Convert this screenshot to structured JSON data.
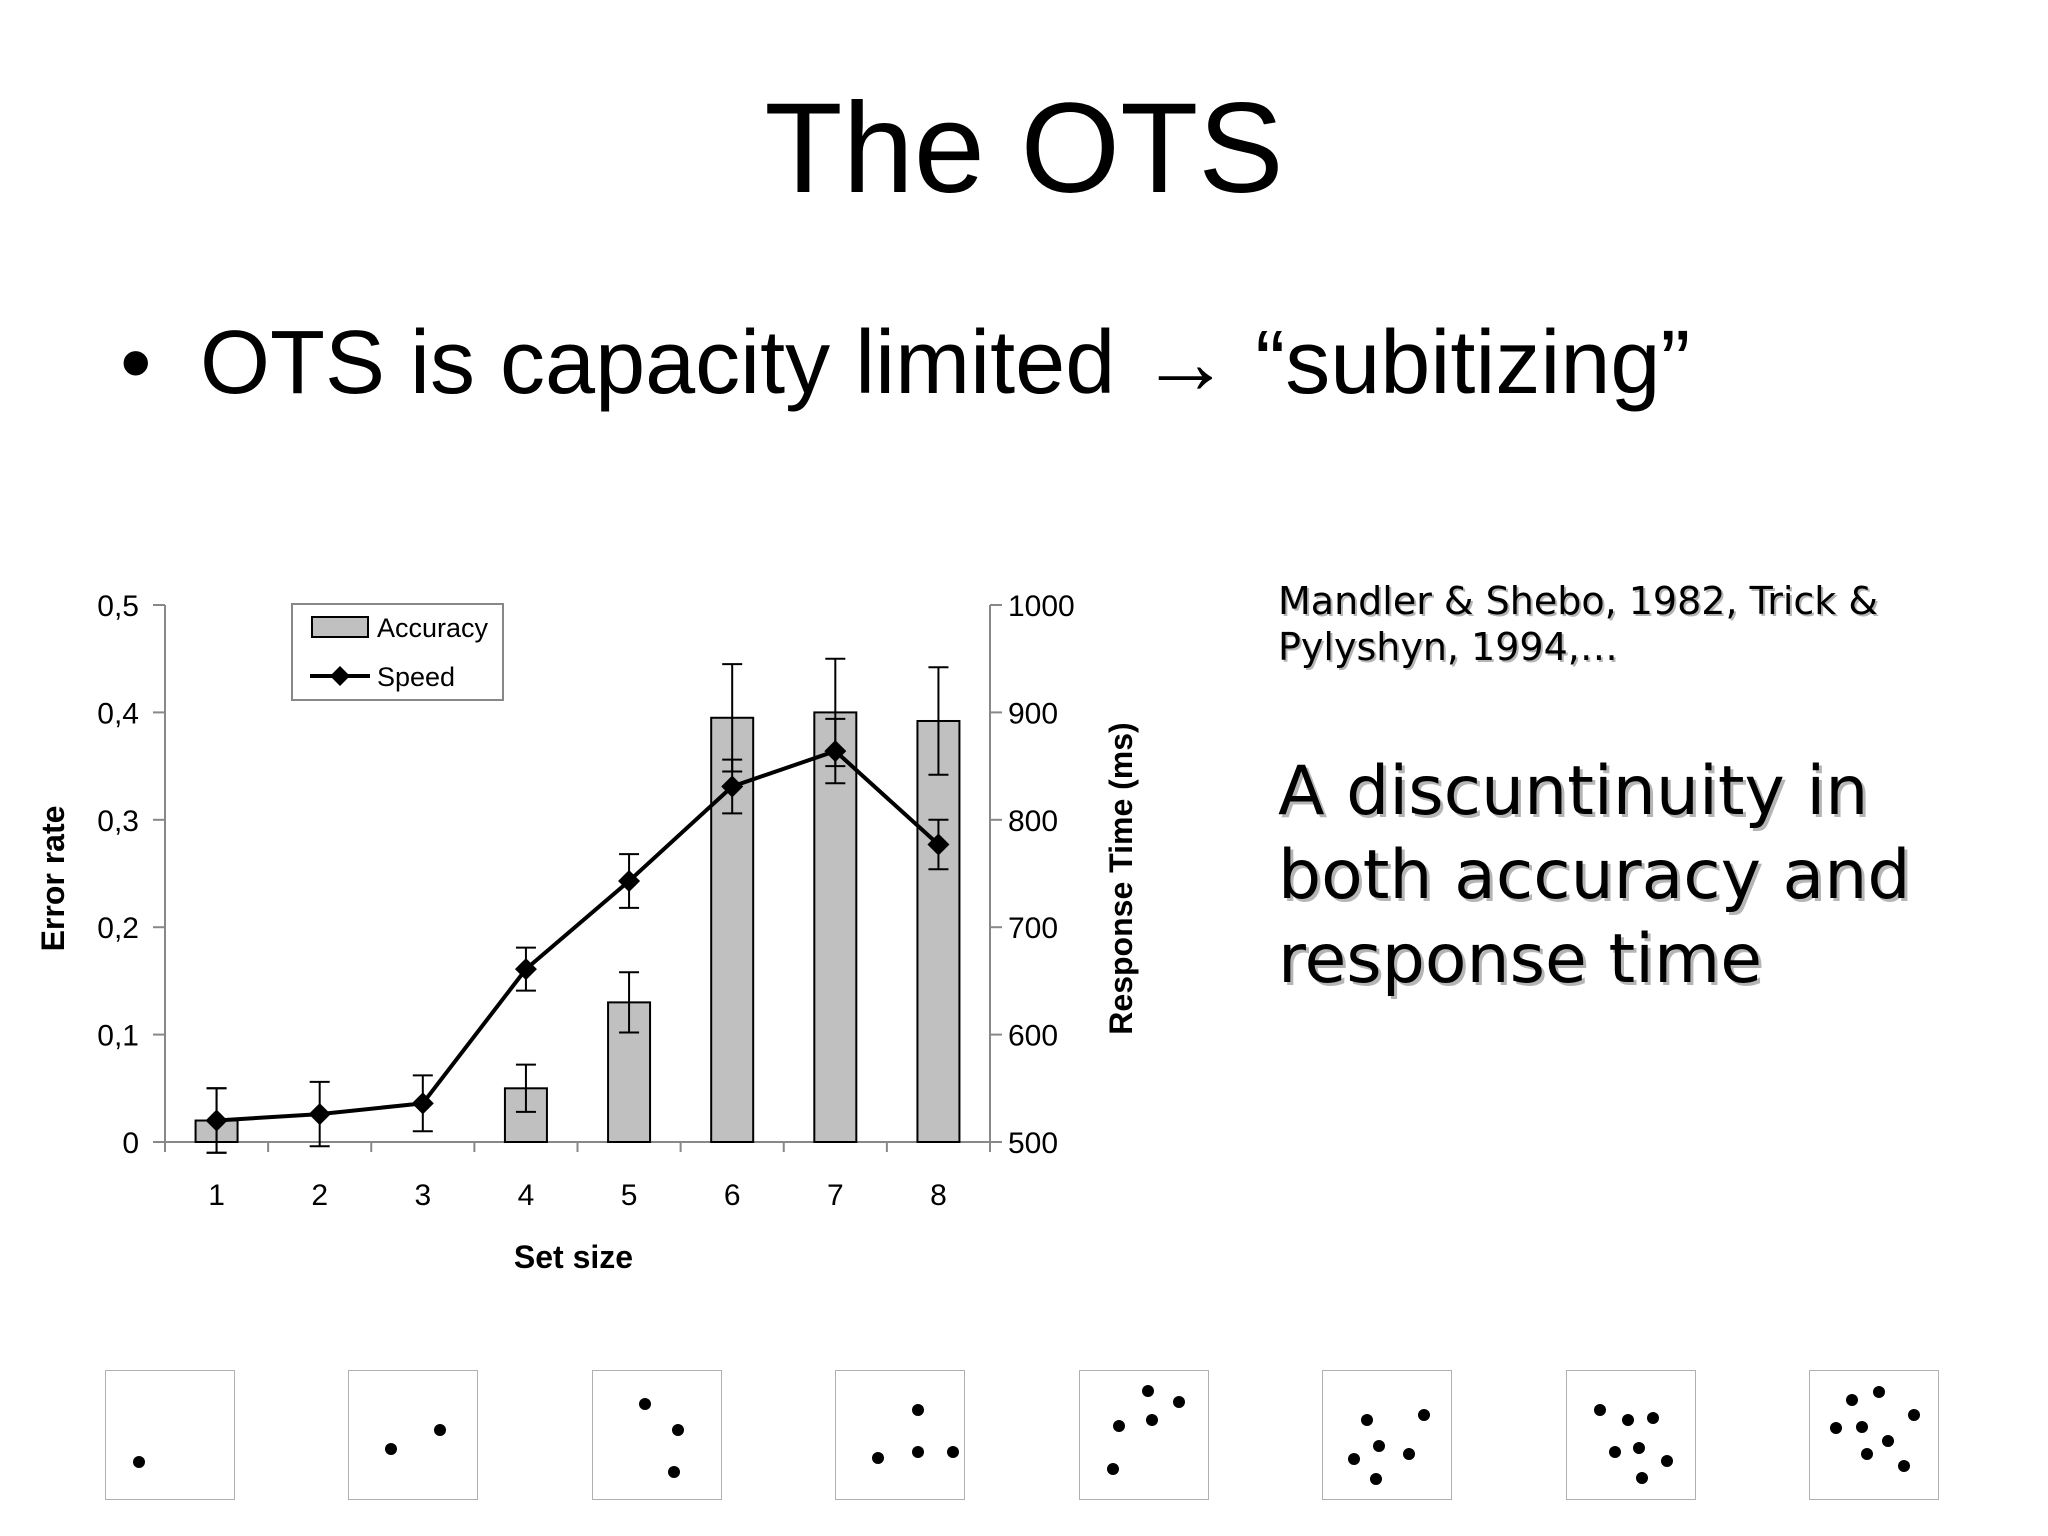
{
  "slide": {
    "title": "The OTS",
    "bullet_symbol": "•",
    "bullet_text": "OTS is capacity limited → “subitizing”",
    "citation": "Mandler & Shebo, 1982, Trick & Pylyshyn, 1994,…",
    "note": "A discuntinuity in both accuracy and response time"
  },
  "chart_data": {
    "type": "bar",
    "title": "",
    "xlabel": "Set size",
    "ylabel": "Error rate",
    "y2label": "Response Time (ms)",
    "categories": [
      "1",
      "2",
      "3",
      "4",
      "5",
      "6",
      "7",
      "8"
    ],
    "ylim": [
      0,
      0.5
    ],
    "y2lim": [
      500,
      1000
    ],
    "y_ticks": [
      "0",
      "0,1",
      "0,2",
      "0,3",
      "0,4",
      "0,5"
    ],
    "y2_ticks": [
      "500",
      "600",
      "700",
      "800",
      "900",
      "1000"
    ],
    "legend_position": "top-left",
    "grid": false,
    "series": [
      {
        "name": "Accuracy",
        "kind": "bar",
        "axis": "left",
        "color": "#c0c0c0",
        "values": [
          0.02,
          0.0,
          0.0,
          0.05,
          0.13,
          0.395,
          0.4,
          0.392
        ],
        "error": [
          0.03,
          0.0,
          0.0,
          0.022,
          0.028,
          0.05,
          0.05,
          0.05
        ]
      },
      {
        "name": "Speed",
        "kind": "line",
        "axis": "right",
        "color": "#000000",
        "marker": "diamond",
        "values": [
          520,
          526,
          536,
          661,
          743,
          831,
          864,
          777
        ],
        "error": [
          30,
          30,
          26,
          20,
          25,
          25,
          30,
          23
        ]
      }
    ]
  },
  "dot_panels": [
    {
      "dots": [
        [
          0.25,
          0.7
        ]
      ]
    },
    {
      "dots": [
        [
          0.32,
          0.6
        ],
        [
          0.7,
          0.45
        ]
      ]
    },
    {
      "dots": [
        [
          0.4,
          0.25
        ],
        [
          0.65,
          0.45
        ],
        [
          0.62,
          0.78
        ]
      ]
    },
    {
      "dots": [
        [
          0.32,
          0.67
        ],
        [
          0.63,
          0.3
        ],
        [
          0.63,
          0.62
        ],
        [
          0.9,
          0.62
        ]
      ]
    },
    {
      "dots": [
        [
          0.25,
          0.75
        ],
        [
          0.3,
          0.42
        ],
        [
          0.52,
          0.15
        ],
        [
          0.55,
          0.38
        ],
        [
          0.76,
          0.24
        ]
      ]
    },
    {
      "dots": [
        [
          0.34,
          0.38
        ],
        [
          0.78,
          0.34
        ],
        [
          0.43,
          0.58
        ],
        [
          0.66,
          0.64
        ],
        [
          0.24,
          0.68
        ],
        [
          0.41,
          0.83
        ]
      ]
    },
    {
      "dots": [
        [
          0.25,
          0.3
        ],
        [
          0.47,
          0.38
        ],
        [
          0.66,
          0.36
        ],
        [
          0.37,
          0.62
        ],
        [
          0.55,
          0.59
        ],
        [
          0.77,
          0.69
        ],
        [
          0.58,
          0.82
        ]
      ]
    },
    {
      "dots": [
        [
          0.32,
          0.22
        ],
        [
          0.53,
          0.16
        ],
        [
          0.2,
          0.44
        ],
        [
          0.4,
          0.43
        ],
        [
          0.8,
          0.34
        ],
        [
          0.6,
          0.54
        ],
        [
          0.44,
          0.64
        ],
        [
          0.72,
          0.73
        ]
      ]
    }
  ]
}
